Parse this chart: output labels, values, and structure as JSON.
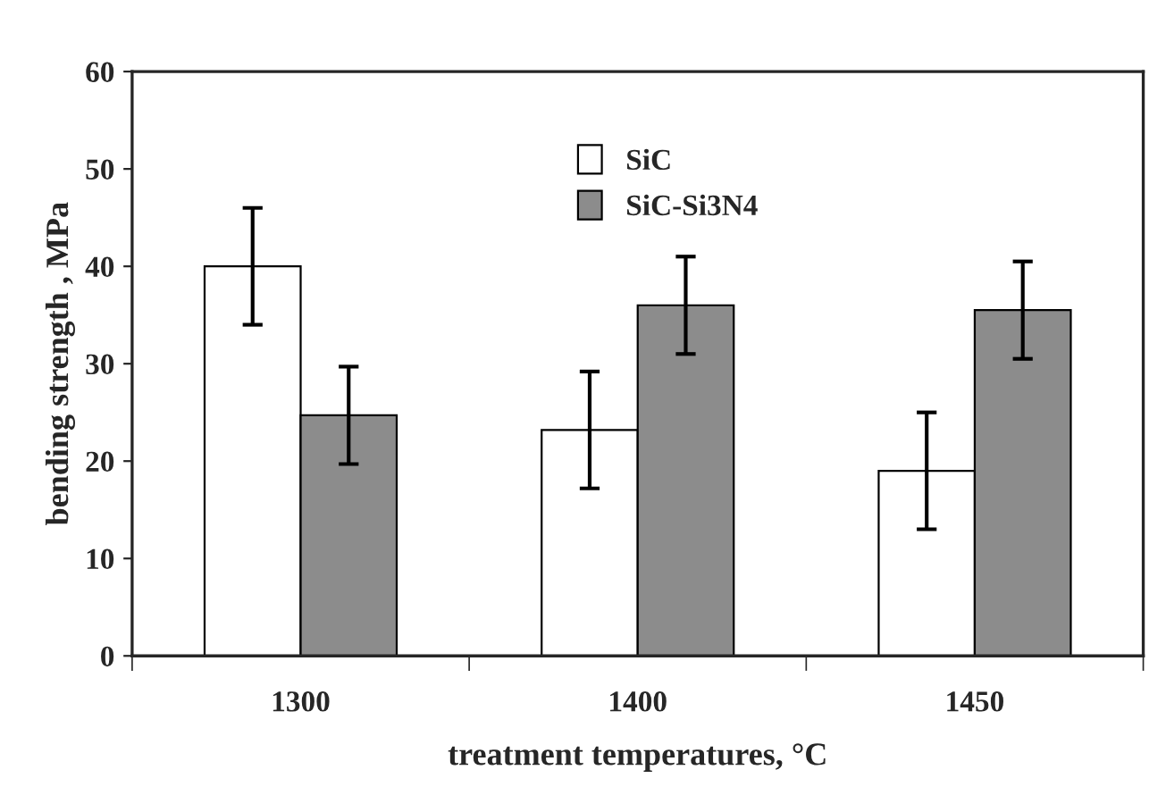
{
  "chart_data": {
    "type": "bar",
    "xlabel": "treatment temperatures, °C",
    "ylabel": "bending strength , MPa",
    "categories": [
      "1300",
      "1400",
      "1450"
    ],
    "series": [
      {
        "name": "SiC",
        "color": "#ffffff",
        "values": [
          40,
          23.2,
          19
        ],
        "errors": [
          6,
          6,
          6
        ]
      },
      {
        "name": "SiC-Si3N4",
        "color": "#8c8c8c",
        "values": [
          24.7,
          36,
          35.5
        ],
        "errors": [
          5,
          5,
          5
        ]
      }
    ],
    "ylim": [
      0,
      60
    ],
    "yticks": [
      0,
      10,
      20,
      30,
      40,
      50,
      60
    ],
    "grid": false,
    "legend": "top"
  }
}
